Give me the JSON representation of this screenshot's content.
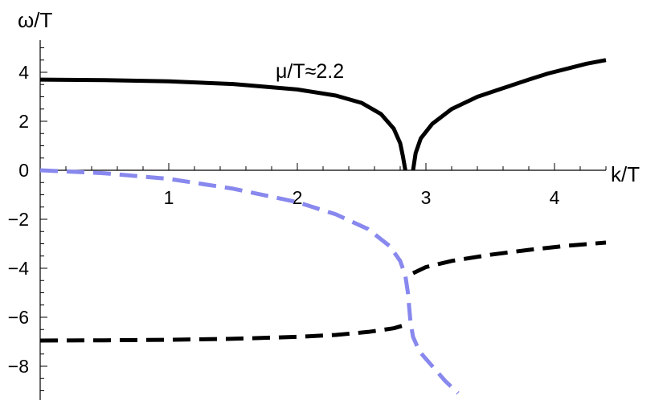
{
  "chart_data": {
    "type": "line",
    "xlabel": "k/T",
    "ylabel": "ω/T",
    "annotation": "μ/T≈2.2",
    "xlim": [
      0,
      4.4
    ],
    "ylim": [
      -9,
      5
    ],
    "x_ticks": [
      1,
      2,
      3,
      4
    ],
    "x_tick_labels": [
      "1",
      "2",
      "3",
      "4"
    ],
    "y_ticks": [
      4,
      2,
      0,
      -2,
      -4,
      -6,
      -8
    ],
    "y_tick_labels": [
      "4",
      "2",
      "0",
      "−2",
      "−4",
      "−6",
      "−8"
    ],
    "grid": false,
    "legend": "none",
    "series": [
      {
        "style": "solid",
        "color": "#000000",
        "points": [
          [
            0,
            3.7
          ],
          [
            0.5,
            3.68
          ],
          [
            1,
            3.63
          ],
          [
            1.5,
            3.52
          ],
          [
            2,
            3.3
          ],
          [
            2.3,
            3.05
          ],
          [
            2.5,
            2.75
          ],
          [
            2.65,
            2.3
          ],
          [
            2.75,
            1.7
          ],
          [
            2.8,
            1.1
          ],
          [
            2.82,
            0.6
          ],
          [
            2.84,
            0
          ]
        ]
      },
      {
        "style": "solid",
        "color": "#000000",
        "points": [
          [
            2.9,
            0
          ],
          [
            2.92,
            0.7
          ],
          [
            2.96,
            1.3
          ],
          [
            3.05,
            1.9
          ],
          [
            3.2,
            2.5
          ],
          [
            3.4,
            3.0
          ],
          [
            3.6,
            3.35
          ],
          [
            3.8,
            3.7
          ],
          [
            3.95,
            3.95
          ],
          [
            4.1,
            4.15
          ],
          [
            4.25,
            4.35
          ],
          [
            4.4,
            4.5
          ]
        ]
      },
      {
        "style": "dashed",
        "color": "#8888ee",
        "points": [
          [
            0,
            0
          ],
          [
            0.5,
            -0.12
          ],
          [
            1,
            -0.35
          ],
          [
            1.5,
            -0.75
          ],
          [
            2,
            -1.3
          ],
          [
            2.3,
            -1.8
          ],
          [
            2.55,
            -2.4
          ],
          [
            2.72,
            -3.1
          ],
          [
            2.8,
            -3.7
          ],
          [
            2.84,
            -4.3
          ],
          [
            2.86,
            -5.0
          ],
          [
            2.87,
            -5.6
          ],
          [
            2.88,
            -6.2
          ],
          [
            2.9,
            -6.8
          ],
          [
            2.95,
            -7.4
          ],
          [
            3.05,
            -8.0
          ],
          [
            3.15,
            -8.6
          ],
          [
            3.25,
            -9.1
          ]
        ]
      },
      {
        "style": "dashed",
        "color": "#000000",
        "points": [
          [
            0,
            -6.95
          ],
          [
            0.5,
            -6.94
          ],
          [
            1,
            -6.92
          ],
          [
            1.5,
            -6.88
          ],
          [
            2,
            -6.8
          ],
          [
            2.3,
            -6.72
          ],
          [
            2.55,
            -6.6
          ],
          [
            2.75,
            -6.45
          ],
          [
            2.85,
            -6.3
          ]
        ]
      },
      {
        "style": "dashed",
        "color": "#000000",
        "points": [
          [
            2.9,
            -4.2
          ],
          [
            3,
            -3.95
          ],
          [
            3.2,
            -3.7
          ],
          [
            3.5,
            -3.45
          ],
          [
            3.8,
            -3.25
          ],
          [
            4.1,
            -3.08
          ],
          [
            4.4,
            -2.95
          ]
        ]
      }
    ]
  }
}
